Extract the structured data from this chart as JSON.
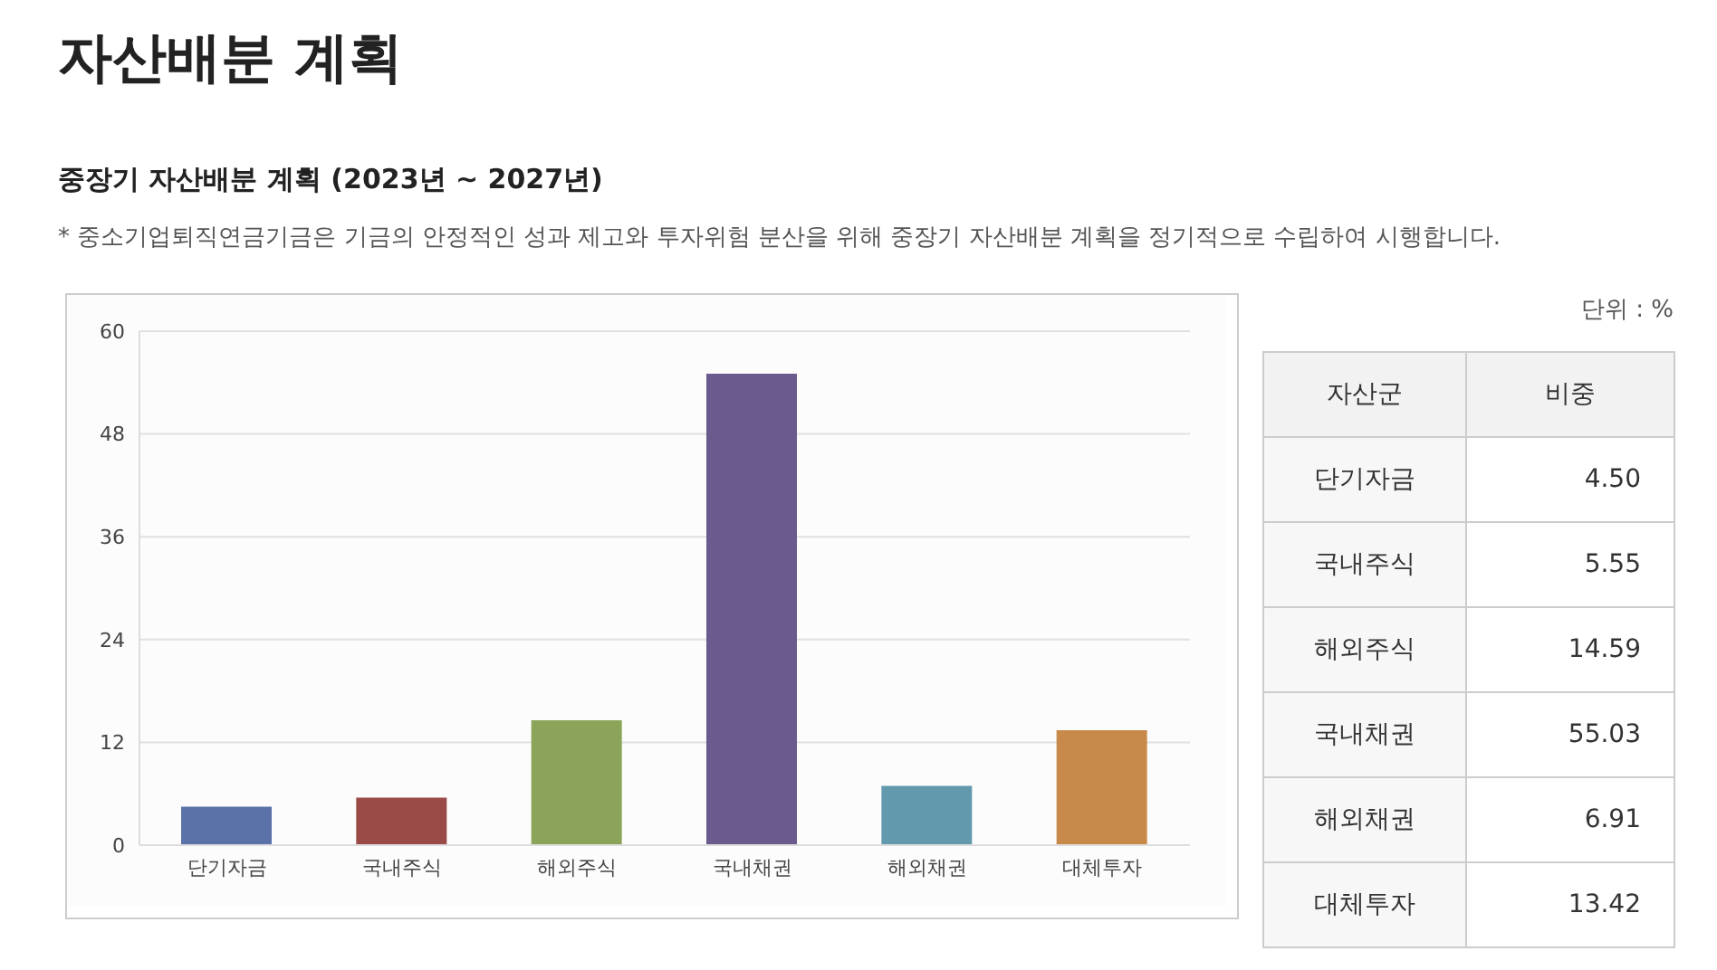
{
  "chart_data": {
    "type": "bar",
    "title": "자산배분 계획",
    "subtitle": "중장기 자산배분 계획 (2023년 ~ 2027년)",
    "annotations": [
      "* 중소기업퇴직연금기금은 기금의 안정적인 성과 제고와 투자위험 분산을 위해 중장기 자산배분 계획을 정기적으로 수립하여 시행합니다.",
      "단위 : %",
      "자산군",
      "비중",
      "4.50",
      "5.55",
      "14.59",
      "55.03",
      "6.91",
      "13.42"
    ],
    "categories": [
      "단기자금",
      "국내주식",
      "해외주식",
      "국내채권",
      "해외채권",
      "대체투자"
    ],
    "values": [
      4.5,
      5.55,
      14.59,
      55.03,
      6.91,
      13.42
    ],
    "colors": [
      "#5a72a8",
      "#9a4b48",
      "#8ba45a",
      "#6b5a8c",
      "#6399ad",
      "#c88a4a"
    ],
    "ylim": [
      0,
      60
    ],
    "yticks": [
      0,
      12,
      24,
      36,
      48,
      60
    ],
    "grid": "y"
  }
}
